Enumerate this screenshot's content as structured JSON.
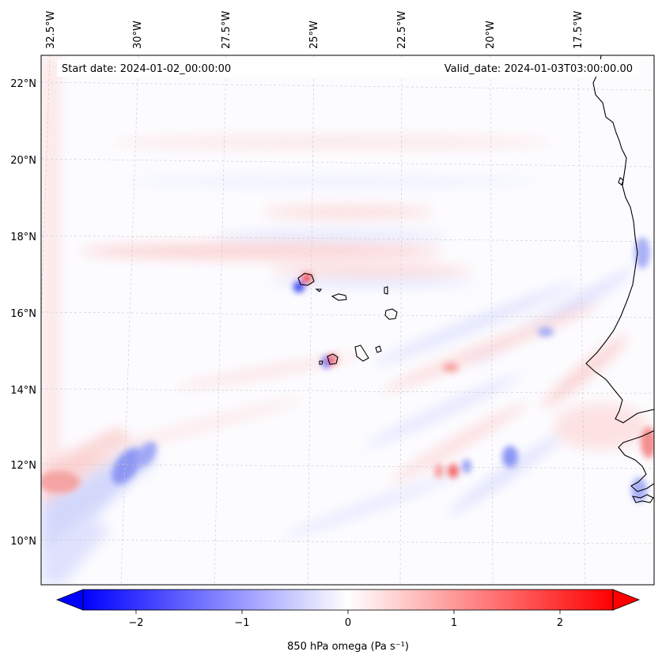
{
  "header": {
    "start_label": "Start date: 2024-01-02_00:00:00",
    "valid_label": "Valid_date: 2024-01-03T03:00:00.00"
  },
  "map": {
    "lon_ticks": [
      "32.5°W",
      "30°W",
      "27.5°W",
      "25°W",
      "22.5°W",
      "20°W",
      "17.5°W"
    ],
    "lat_ticks": [
      "22°N",
      "20°N",
      "18°N",
      "16°N",
      "14°N",
      "12°N",
      "10°N"
    ],
    "lon_values": [
      -32.5,
      -30,
      -27.5,
      -25,
      -22.5,
      -20,
      -17.5
    ],
    "lat_values": [
      22,
      20,
      18,
      16,
      14,
      12,
      10
    ],
    "field_min_color": "#0000ff",
    "field_mid_color": "#ffffff",
    "field_max_color": "#ff0000"
  },
  "colorbar": {
    "label": "850 hPa omega (Pa s⁻¹)",
    "ticks": [
      "−2",
      "−1",
      "0",
      "1",
      "2"
    ],
    "tick_values": [
      -2,
      -1,
      0,
      1,
      2
    ],
    "range": [
      -2.5,
      2.5
    ],
    "extend": "both"
  }
}
